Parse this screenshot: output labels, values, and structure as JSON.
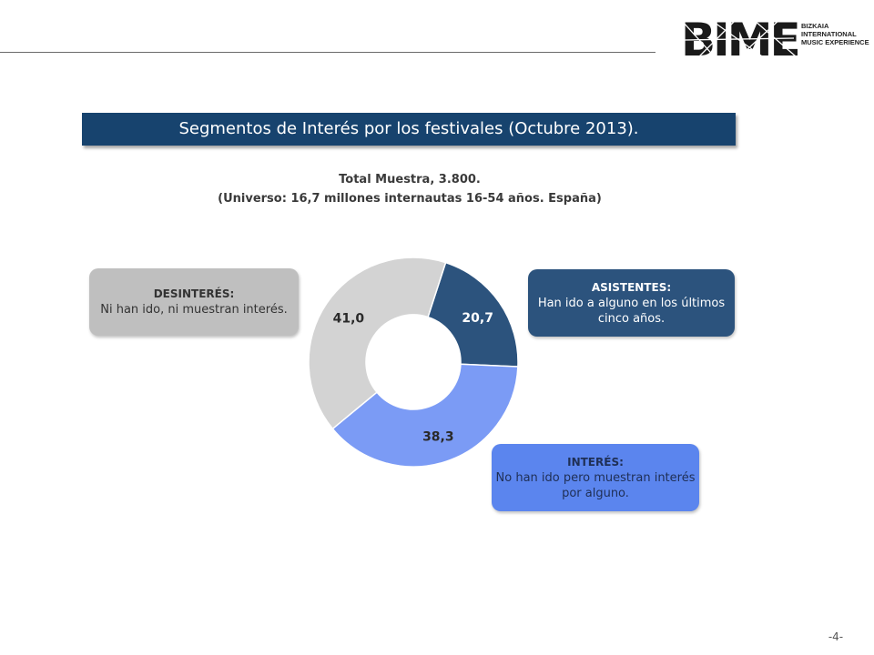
{
  "logo": {
    "wordmark": "BIME",
    "tagline": [
      "BIZKAIA",
      "INTERNATIONAL",
      "MUSIC EXPERIENCE"
    ]
  },
  "title": "Segmentos de Interés por los festivales (Octubre 2013).",
  "sample": {
    "line1": "Total Muestra, 3.800.",
    "line2": "(Universo: 16,7 millones internautas 16-54 años. España)"
  },
  "callouts": {
    "desinteres": {
      "title": "DESINTERÉS:",
      "text": "Ni han ido, ni muestran interés."
    },
    "asistentes": {
      "title": "ASISTENTES:",
      "text": "Han ido a alguno en los últimos cinco años."
    },
    "interes": {
      "title": "INTERÉS:",
      "text": "No han ido pero muestran interés por alguno."
    }
  },
  "chart_data": {
    "type": "pie",
    "donut": true,
    "start_angle_deg": 18,
    "direction": "clockwise",
    "slices": [
      {
        "label": "20,7",
        "value": 20.7,
        "color": "#2c537d",
        "label_color": "#ffffff"
      },
      {
        "label": "38,3",
        "value": 38.3,
        "color": "#7b9bf5",
        "label_color": "#2a2a2a"
      },
      {
        "label": "41,0",
        "value": 41.0,
        "color": "#d3d3d3",
        "label_color": "#2a2a2a"
      }
    ]
  },
  "page_number": "-4-",
  "colors": {
    "banner": "#17436e",
    "rule": "#6b6b6b"
  }
}
